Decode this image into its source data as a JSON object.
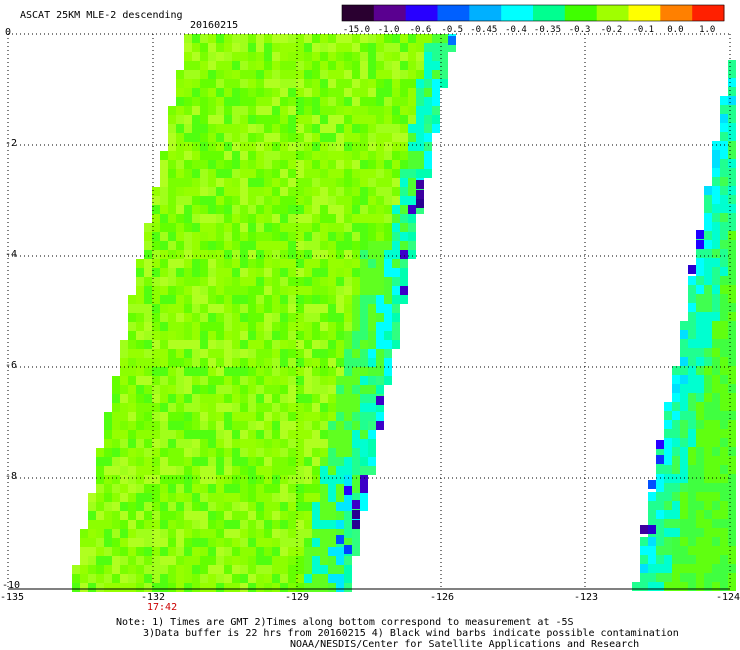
{
  "title": "ASCAT 25KM MLE-2 descending",
  "date": "20160215",
  "colorbar": {
    "labels": [
      "-15.0",
      "-1.0",
      "-0.6",
      "-0.5",
      "-0.45",
      "-0.4",
      "-0.35",
      "-0.3",
      "-0.2",
      "-0.1",
      "0.0",
      "1.0"
    ],
    "colors": [
      "#2a0030",
      "#5a0090",
      "#2800ff",
      "#0060ff",
      "#00b0ff",
      "#00ffff",
      "#00ff90",
      "#40ff00",
      "#a0ff00",
      "#ffff00",
      "#ff8000",
      "#ff2000"
    ]
  },
  "map": {
    "lon_range": [
      -135,
      -124
    ],
    "lat_range": [
      -10,
      0
    ],
    "x_ticks": [
      "-135",
      "-132",
      "-129",
      "-126",
      "-123",
      "-124"
    ],
    "y_ticks": [
      "0",
      "-2",
      "-4",
      "-6",
      "-8",
      "-10"
    ],
    "time_label": "17:42"
  },
  "notes": [
    "Note: 1) Times are GMT 2)Times along bottom correspond to measurement at -5S",
    "3)Data buffer is 22 hrs from 20160215 4) Black wind barbs indicate possible contamination",
    "NOAA/NESDIS/Center for Satellite Applications and Research"
  ]
}
